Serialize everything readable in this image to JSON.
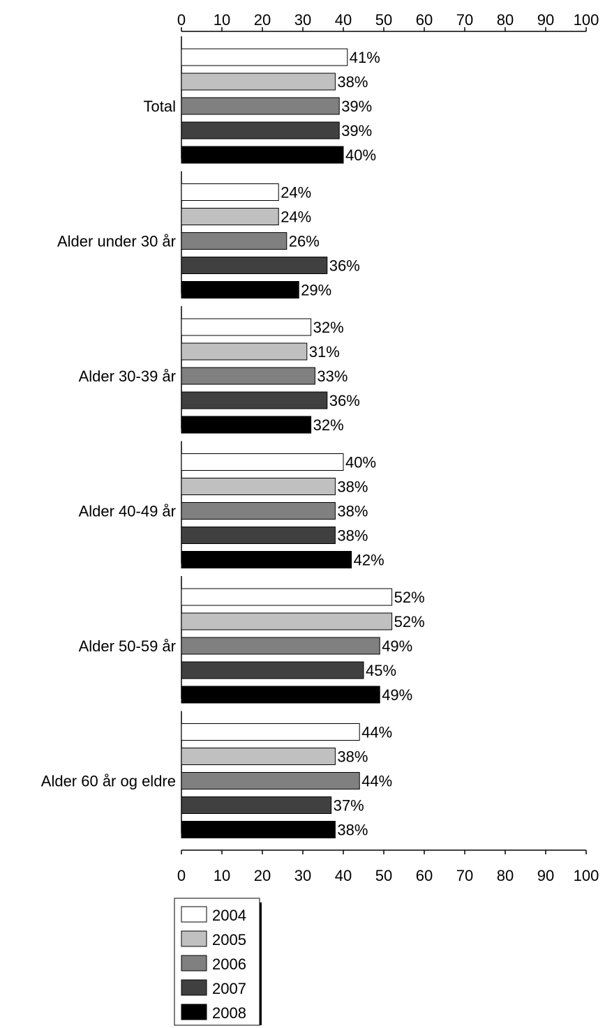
{
  "chart_data": {
    "type": "bar",
    "orientation": "horizontal",
    "categories": [
      "Total",
      "Alder under 30 år",
      "Alder 30-39 år",
      "Alder 40-49 år",
      "Alder 50-59 år",
      "Alder 60 år og eldre"
    ],
    "series": [
      {
        "name": "2004",
        "color": "#ffffff",
        "values": [
          41,
          24,
          32,
          40,
          52,
          44
        ]
      },
      {
        "name": "2005",
        "color": "#c0c0c0",
        "values": [
          38,
          24,
          31,
          38,
          52,
          38
        ]
      },
      {
        "name": "2006",
        "color": "#808080",
        "values": [
          39,
          26,
          33,
          38,
          49,
          44
        ]
      },
      {
        "name": "2007",
        "color": "#404040",
        "values": [
          39,
          36,
          36,
          38,
          45,
          37
        ]
      },
      {
        "name": "2008",
        "color": "#000000",
        "values": [
          40,
          29,
          32,
          42,
          49,
          38
        ]
      }
    ],
    "value_suffix": "%",
    "xlim": [
      0,
      100
    ],
    "xticks": [
      0,
      10,
      20,
      30,
      40,
      50,
      60,
      70,
      80,
      90,
      100
    ],
    "title": "",
    "xlabel": "",
    "ylabel": "",
    "grid": false,
    "axis_labels_top_and_bottom": true,
    "legend_position": "bottom"
  }
}
